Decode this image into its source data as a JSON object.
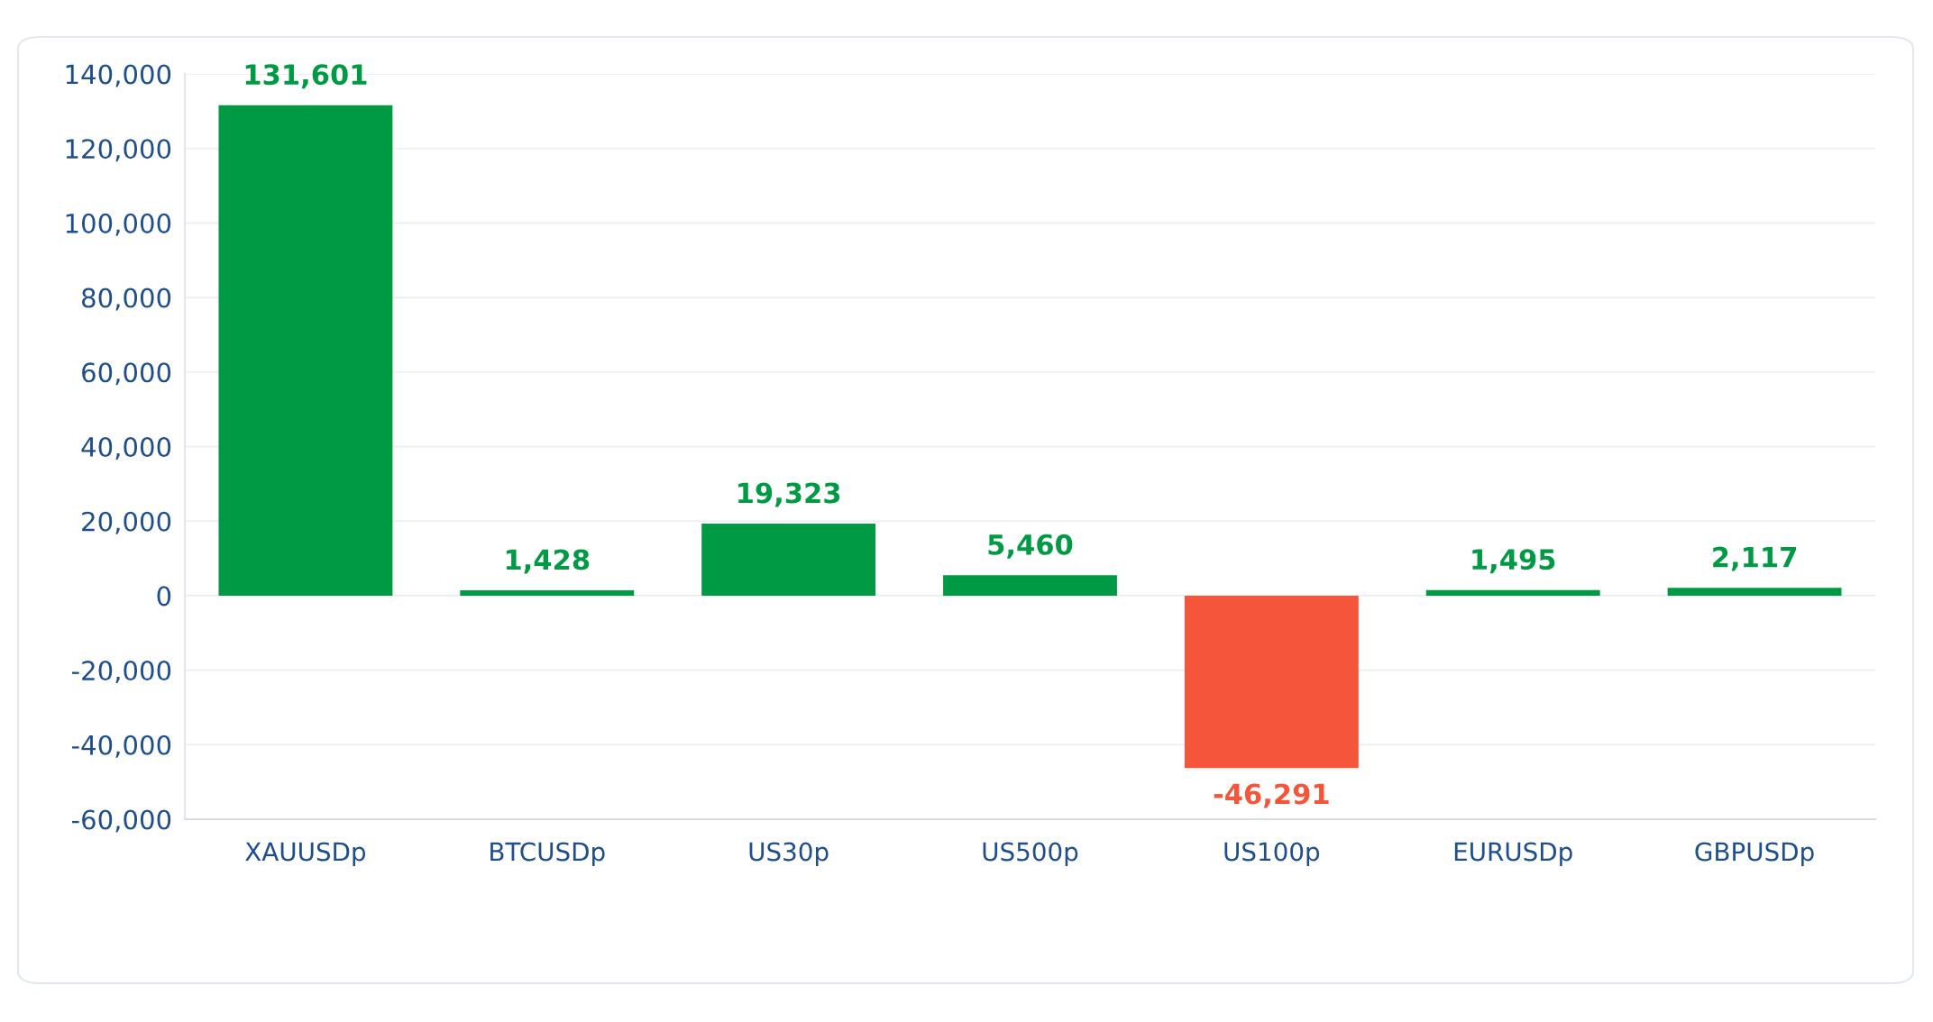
{
  "chart_data": {
    "type": "bar",
    "categories": [
      "XAUUSDp",
      "BTCUSDp",
      "US30p",
      "US500p",
      "US100p",
      "EURUSDp",
      "GBPUSDp"
    ],
    "values": [
      131601,
      1428,
      19323,
      5460,
      -46291,
      1495,
      2117
    ],
    "colors": [
      "#009a44",
      "#009a44",
      "#009a44",
      "#009a44",
      "#f5553a",
      "#009a44",
      "#009a44"
    ],
    "value_labels": [
      "131,601",
      "1,428",
      "19,323",
      "5,460",
      "-46,291",
      "1,495",
      "2,117"
    ],
    "ylim": [
      -60000,
      140000
    ],
    "yticks": [
      {
        "value": -60000,
        "label": "-60,000"
      },
      {
        "value": -40000,
        "label": "-40,000"
      },
      {
        "value": -20000,
        "label": "-20,000"
      },
      0,
      {
        "value": 20000,
        "label": "20,000"
      },
      {
        "value": 40000,
        "label": "40,000"
      },
      {
        "value": 60000,
        "label": "60,000"
      },
      {
        "value": 80000,
        "label": "80,000"
      },
      {
        "value": 100000,
        "label": "100,000"
      },
      {
        "value": 120000,
        "label": "120,000"
      },
      {
        "value": 140000,
        "label": "140,000"
      }
    ],
    "grid": "y"
  }
}
